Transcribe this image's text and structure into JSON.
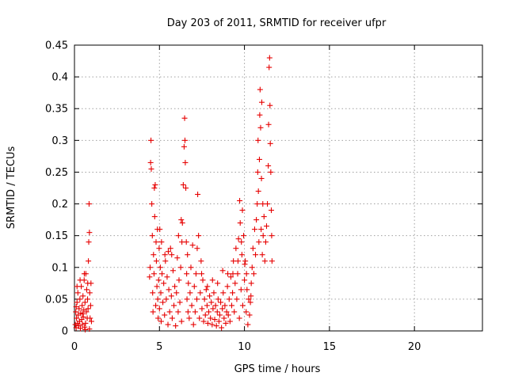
{
  "chart_data": {
    "type": "scatter",
    "title": "Day 203 of 2011, SRMTID for receiver ufpr",
    "xlabel": "GPS time / hours",
    "ylabel": "SRMTID / TECUs",
    "xlim": [
      0,
      24
    ],
    "ylim": [
      0,
      0.45
    ],
    "xticks": [
      0,
      5,
      10,
      15,
      20
    ],
    "yticks": [
      0,
      0.05,
      0.1,
      0.15,
      0.2,
      0.25,
      0.3,
      0.35,
      0.4,
      0.45
    ],
    "grid": true,
    "marker": "+",
    "color": "#e60000",
    "series": [
      {
        "name": "SRMTID",
        "points": [
          [
            0.05,
            0.01
          ],
          [
            0.08,
            0.03
          ],
          [
            0.1,
            0.005
          ],
          [
            0.12,
            0.02
          ],
          [
            0.15,
            0.045
          ],
          [
            0.18,
            0.012
          ],
          [
            0.2,
            0.06
          ],
          [
            0.22,
            0.025
          ],
          [
            0.25,
            0.008
          ],
          [
            0.27,
            0.035
          ],
          [
            0.3,
            0.015
          ],
          [
            0.32,
            0.05
          ],
          [
            0.35,
            0.004
          ],
          [
            0.37,
            0.028
          ],
          [
            0.4,
            0.07
          ],
          [
            0.42,
            0.018
          ],
          [
            0.45,
            0.04
          ],
          [
            0.47,
            0.01
          ],
          [
            0.5,
            0.055
          ],
          [
            0.52,
            0.022
          ],
          [
            0.55,
            0.033
          ],
          [
            0.57,
            0.08
          ],
          [
            0.6,
            0.006
          ],
          [
            0.62,
            0.045
          ],
          [
            0.65,
            0.012
          ],
          [
            0.67,
            0.09
          ],
          [
            0.7,
            0.03
          ],
          [
            0.72,
            0.065
          ],
          [
            0.75,
            0.02
          ],
          [
            0.77,
            0.05
          ],
          [
            0.8,
            0.035
          ],
          [
            0.82,
            0.11
          ],
          [
            0.84,
            0.14
          ],
          [
            0.86,
            0.2
          ],
          [
            0.88,
            0.155
          ],
          [
            0.9,
            0.06
          ],
          [
            0.92,
            0.02
          ],
          [
            0.95,
            0.04
          ],
          [
            0.97,
            0.075
          ],
          [
            1.0,
            0.015
          ],
          [
            0.15,
            0.07
          ],
          [
            0.33,
            0.08
          ],
          [
            0.58,
            0.09
          ],
          [
            0.78,
            0.075
          ],
          [
            0.1,
            0.038
          ],
          [
            0.48,
            0.027
          ],
          [
            0.63,
            0.002
          ],
          [
            0.88,
            0.003
          ],
          [
            4.42,
            0.085
          ],
          [
            4.45,
            0.1
          ],
          [
            4.48,
            0.265
          ],
          [
            4.5,
            0.3
          ],
          [
            4.52,
            0.255
          ],
          [
            4.55,
            0.2
          ],
          [
            4.58,
            0.15
          ],
          [
            4.6,
            0.06
          ],
          [
            4.62,
            0.03
          ],
          [
            4.65,
            0.12
          ],
          [
            4.68,
            0.09
          ],
          [
            4.7,
            0.225
          ],
          [
            4.72,
            0.18
          ],
          [
            4.75,
            0.23
          ],
          [
            4.78,
            0.04
          ],
          [
            4.8,
            0.14
          ],
          [
            4.82,
            0.11
          ],
          [
            4.85,
            0.07
          ],
          [
            4.88,
            0.16
          ],
          [
            4.9,
            0.05
          ],
          [
            4.92,
            0.02
          ],
          [
            4.95,
            0.08
          ],
          [
            4.98,
            0.13
          ],
          [
            5.0,
            0.035
          ],
          [
            5.05,
            0.1
          ],
          [
            5.08,
            0.06
          ],
          [
            5.1,
            0.015
          ],
          [
            5.15,
            0.09
          ],
          [
            5.2,
            0.045
          ],
          [
            5.25,
            0.075
          ],
          [
            5.3,
            0.025
          ],
          [
            5.35,
            0.11
          ],
          [
            5.4,
            0.05
          ],
          [
            5.45,
            0.085
          ],
          [
            5.5,
            0.01
          ],
          [
            5.55,
            0.065
          ],
          [
            5.6,
            0.03
          ],
          [
            5.65,
            0.13
          ],
          [
            5.7,
            0.055
          ],
          [
            5.75,
            0.02
          ],
          [
            5.8,
            0.095
          ],
          [
            5.85,
            0.04
          ],
          [
            5.9,
            0.07
          ],
          [
            5.95,
            0.008
          ],
          [
            6.0,
            0.06
          ],
          [
            6.05,
            0.115
          ],
          [
            6.1,
            0.03
          ],
          [
            6.15,
            0.08
          ],
          [
            6.2,
            0.045
          ],
          [
            6.25,
            0.1
          ],
          [
            6.3,
            0.015
          ],
          [
            6.35,
            0.17
          ],
          [
            6.4,
            0.23
          ],
          [
            6.45,
            0.29
          ],
          [
            6.48,
            0.335
          ],
          [
            6.5,
            0.3
          ],
          [
            6.52,
            0.265
          ],
          [
            6.55,
            0.225
          ],
          [
            6.58,
            0.14
          ],
          [
            6.6,
            0.09
          ],
          [
            6.62,
            0.05
          ],
          [
            6.65,
            0.12
          ],
          [
            6.68,
            0.03
          ],
          [
            6.7,
            0.075
          ],
          [
            6.75,
            0.02
          ],
          [
            6.8,
            0.06
          ],
          [
            6.85,
            0.1
          ],
          [
            6.9,
            0.04
          ],
          [
            6.95,
            0.135
          ],
          [
            7.0,
            0.01
          ],
          [
            7.05,
            0.07
          ],
          [
            7.1,
            0.03
          ],
          [
            7.15,
            0.09
          ],
          [
            7.2,
            0.05
          ],
          [
            7.25,
            0.215
          ],
          [
            7.3,
            0.15
          ],
          [
            7.35,
            0.02
          ],
          [
            7.4,
            0.06
          ],
          [
            7.45,
            0.11
          ],
          [
            7.5,
            0.035
          ],
          [
            7.55,
            0.08
          ],
          [
            7.6,
            0.015
          ],
          [
            7.65,
            0.05
          ],
          [
            7.7,
            0.025
          ],
          [
            7.75,
            0.065
          ],
          [
            7.8,
            0.04
          ],
          [
            7.85,
            0.012
          ],
          [
            7.9,
            0.03
          ],
          [
            7.95,
            0.055
          ],
          [
            8.0,
            0.02
          ],
          [
            8.05,
            0.045
          ],
          [
            8.1,
            0.01
          ],
          [
            8.15,
            0.035
          ],
          [
            8.2,
            0.06
          ],
          [
            8.25,
            0.018
          ],
          [
            8.3,
            0.04
          ],
          [
            8.35,
            0.008
          ],
          [
            8.4,
            0.03
          ],
          [
            8.45,
            0.05
          ],
          [
            8.5,
            0.015
          ],
          [
            8.55,
            0.025
          ],
          [
            8.6,
            0.045
          ],
          [
            8.65,
            0.005
          ],
          [
            8.7,
            0.035
          ],
          [
            8.75,
            0.06
          ],
          [
            8.8,
            0.02
          ],
          [
            8.85,
            0.04
          ],
          [
            8.9,
            0.012
          ],
          [
            8.95,
            0.03
          ],
          [
            9.0,
            0.07
          ],
          [
            9.05,
            0.025
          ],
          [
            9.1,
            0.05
          ],
          [
            9.15,
            0.015
          ],
          [
            9.2,
            0.085
          ],
          [
            9.25,
            0.04
          ],
          [
            9.3,
            0.06
          ],
          [
            9.35,
            0.11
          ],
          [
            9.4,
            0.03
          ],
          [
            9.45,
            0.075
          ],
          [
            9.5,
            0.13
          ],
          [
            9.55,
            0.05
          ],
          [
            9.6,
            0.09
          ],
          [
            9.65,
            0.145
          ],
          [
            9.7,
            0.02
          ],
          [
            9.75,
            0.17
          ],
          [
            9.8,
            0.065
          ],
          [
            9.85,
            0.12
          ],
          [
            9.9,
            0.04
          ],
          [
            9.95,
            0.15
          ],
          [
            10.0,
            0.08
          ],
          [
            10.05,
            0.11
          ],
          [
            10.1,
            0.03
          ],
          [
            10.15,
            0.065
          ],
          [
            10.2,
            0.01
          ],
          [
            10.25,
            0.05
          ],
          [
            10.3,
            0.025
          ],
          [
            10.35,
            0.045
          ],
          [
            10.4,
            0.075
          ],
          [
            10.45,
            0.1
          ],
          [
            10.5,
            0.13
          ],
          [
            10.55,
            0.09
          ],
          [
            10.6,
            0.16
          ],
          [
            10.65,
            0.12
          ],
          [
            10.7,
            0.175
          ],
          [
            10.75,
            0.2
          ],
          [
            10.78,
            0.25
          ],
          [
            10.8,
            0.3
          ],
          [
            10.82,
            0.22
          ],
          [
            10.85,
            0.14
          ],
          [
            10.88,
            0.27
          ],
          [
            10.9,
            0.34
          ],
          [
            10.92,
            0.38
          ],
          [
            10.95,
            0.32
          ],
          [
            10.98,
            0.16
          ],
          [
            11.0,
            0.24
          ],
          [
            11.02,
            0.36
          ],
          [
            11.05,
            0.12
          ],
          [
            11.08,
            0.2
          ],
          [
            11.1,
            0.15
          ],
          [
            11.15,
            0.18
          ],
          [
            11.2,
            0.11
          ],
          [
            11.25,
            0.14
          ],
          [
            11.3,
            0.165
          ],
          [
            11.35,
            0.2
          ],
          [
            11.4,
            0.26
          ],
          [
            11.42,
            0.325
          ],
          [
            11.45,
            0.415
          ],
          [
            11.48,
            0.43
          ],
          [
            11.5,
            0.355
          ],
          [
            11.52,
            0.295
          ],
          [
            11.55,
            0.25
          ],
          [
            11.58,
            0.19
          ],
          [
            11.6,
            0.15
          ],
          [
            11.62,
            0.11
          ],
          [
            5.02,
            0.16
          ],
          [
            5.12,
            0.14
          ],
          [
            5.32,
            0.12
          ],
          [
            5.52,
            0.125
          ],
          [
            5.72,
            0.12
          ],
          [
            6.12,
            0.15
          ],
          [
            6.28,
            0.175
          ],
          [
            6.32,
            0.14
          ],
          [
            7.22,
            0.13
          ],
          [
            7.48,
            0.09
          ],
          [
            7.82,
            0.07
          ],
          [
            8.12,
            0.08
          ],
          [
            8.42,
            0.075
          ],
          [
            8.72,
            0.095
          ],
          [
            9.02,
            0.09
          ],
          [
            9.32,
            0.09
          ],
          [
            9.62,
            0.11
          ],
          [
            9.82,
            0.14
          ],
          [
            10.02,
            0.105
          ],
          [
            10.12,
            0.09
          ],
          [
            10.38,
            0.055
          ],
          [
            9.88,
            0.19
          ],
          [
            9.72,
            0.205
          ]
        ]
      }
    ]
  }
}
